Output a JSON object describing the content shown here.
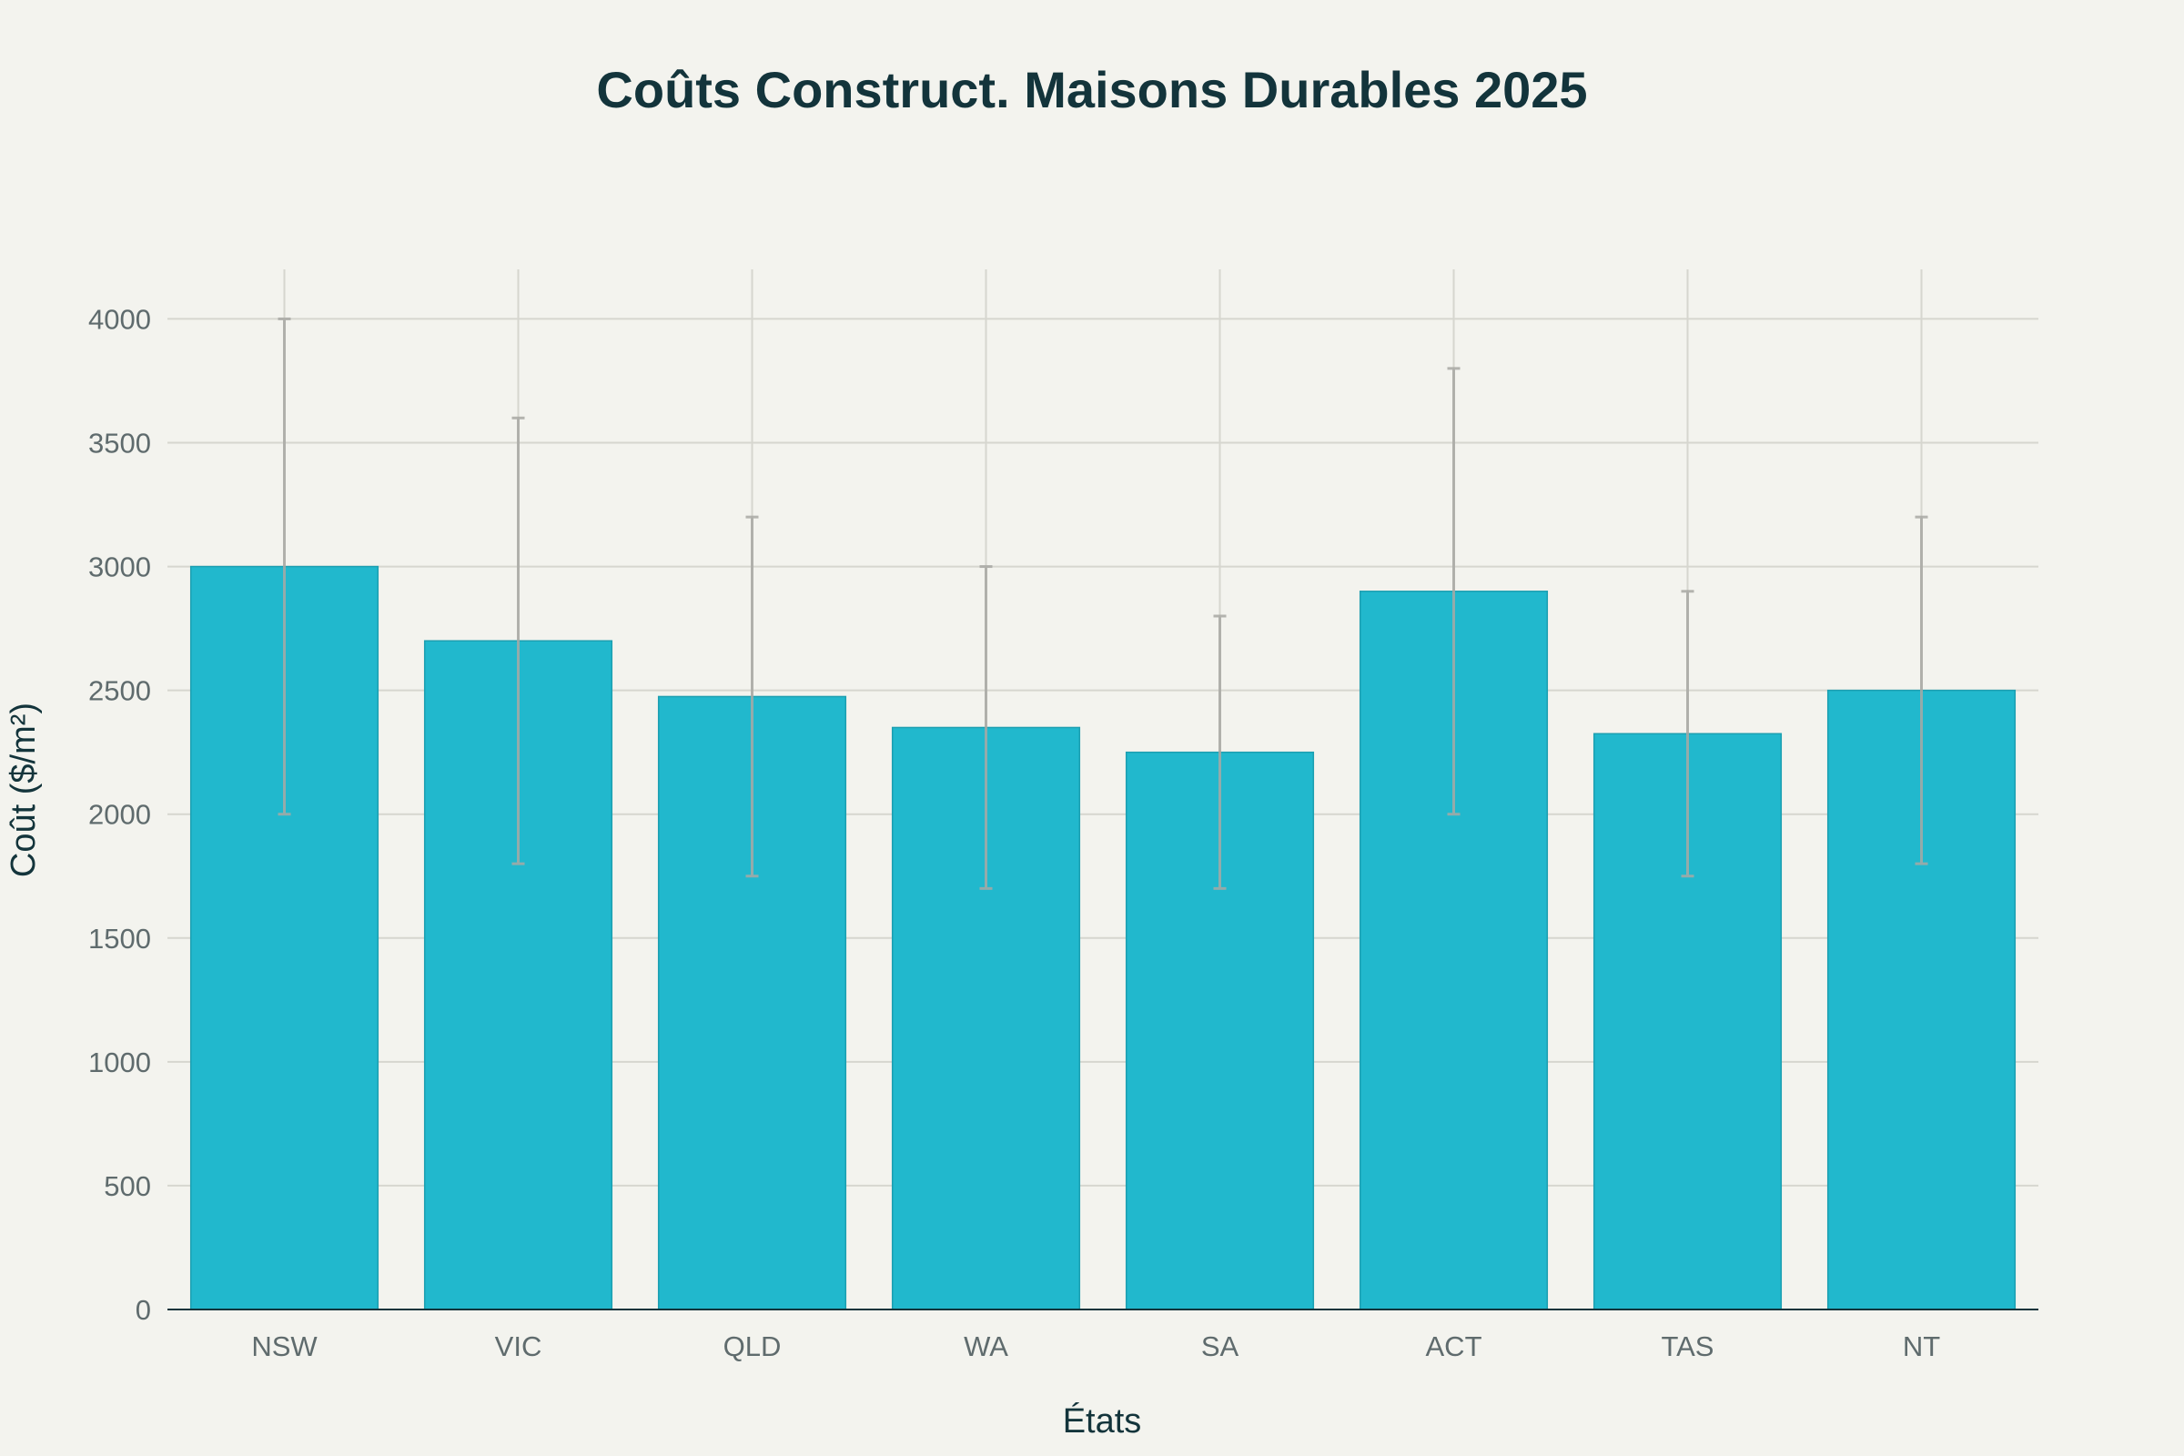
{
  "chart_data": {
    "type": "bar",
    "title": "Coûts Construct. Maisons Durables 2025",
    "xlabel": "États",
    "ylabel": "Coût ($/m²)",
    "categories": [
      "NSW",
      "VIC",
      "QLD",
      "WA",
      "SA",
      "ACT",
      "TAS",
      "NT"
    ],
    "values": [
      3000,
      2700,
      2475,
      2350,
      2250,
      2900,
      2325,
      2500
    ],
    "error_low": [
      2000,
      1800,
      1750,
      1700,
      1700,
      2000,
      1750,
      1800
    ],
    "error_high": [
      4000,
      3600,
      3200,
      3000,
      2800,
      3800,
      2900,
      3200
    ],
    "ylim": [
      0,
      4200
    ],
    "yticks": [
      0,
      500,
      1000,
      1500,
      2000,
      2500,
      3000,
      3500,
      4000
    ],
    "grid": true,
    "legend": false,
    "colors": {
      "bar": "#21b8cd",
      "bar_edge": "#1c9fb1",
      "error_bar": "#a9a9a4",
      "grid": "#d6d6cf",
      "axis": "#13343b",
      "background": "#f3f3ee"
    }
  }
}
